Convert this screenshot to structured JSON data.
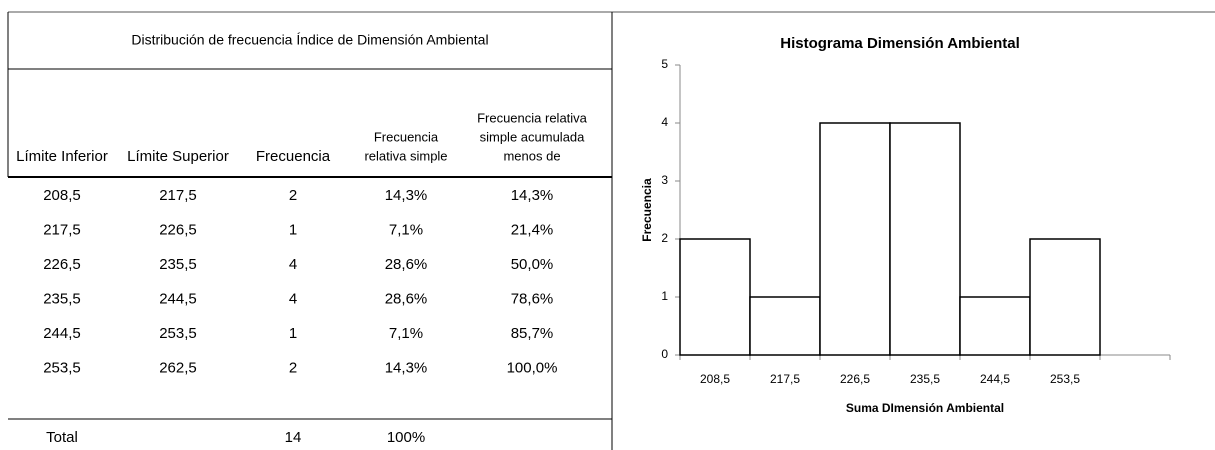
{
  "table": {
    "title": "Distribución de frecuencia Índice de Dimensión Ambiental",
    "headers": [
      [
        "Límite  Inferior"
      ],
      [
        "Límite Superior"
      ],
      [
        "Frecuencia"
      ],
      [
        "Frecuencia",
        "relativa simple"
      ],
      [
        "Frecuencia relativa",
        "simple acumulada",
        "menos de"
      ]
    ],
    "rows": [
      [
        "208,5",
        "217,5",
        "2",
        "14,3%",
        "14,3%"
      ],
      [
        "217,5",
        "226,5",
        "1",
        "7,1%",
        "21,4%"
      ],
      [
        "226,5",
        "235,5",
        "4",
        "28,6%",
        "50,0%"
      ],
      [
        "235,5",
        "244,5",
        "4",
        "28,6%",
        "78,6%"
      ],
      [
        "244,5",
        "253,5",
        "1",
        "7,1%",
        "85,7%"
      ],
      [
        "253,5",
        "262,5",
        "2",
        "14,3%",
        "100,0%"
      ]
    ],
    "total": [
      "Total",
      "14",
      "100%"
    ]
  },
  "chart_data": {
    "type": "bar",
    "title": "Histograma Dimensión Ambiental",
    "x_label": "Suma DImensión Ambiental",
    "y_label": "Frecuencia",
    "categories": [
      "208,5",
      "217,5",
      "226,5",
      "235,5",
      "244,5",
      "253,5",
      null
    ],
    "values": [
      2,
      1,
      4,
      4,
      1,
      2,
      null
    ],
    "color": "#ffffff",
    "edge_color": "#000000",
    "ylim": [
      0,
      5
    ],
    "yticks": [
      0,
      1,
      2,
      3,
      4,
      5
    ],
    "grid": false
  }
}
